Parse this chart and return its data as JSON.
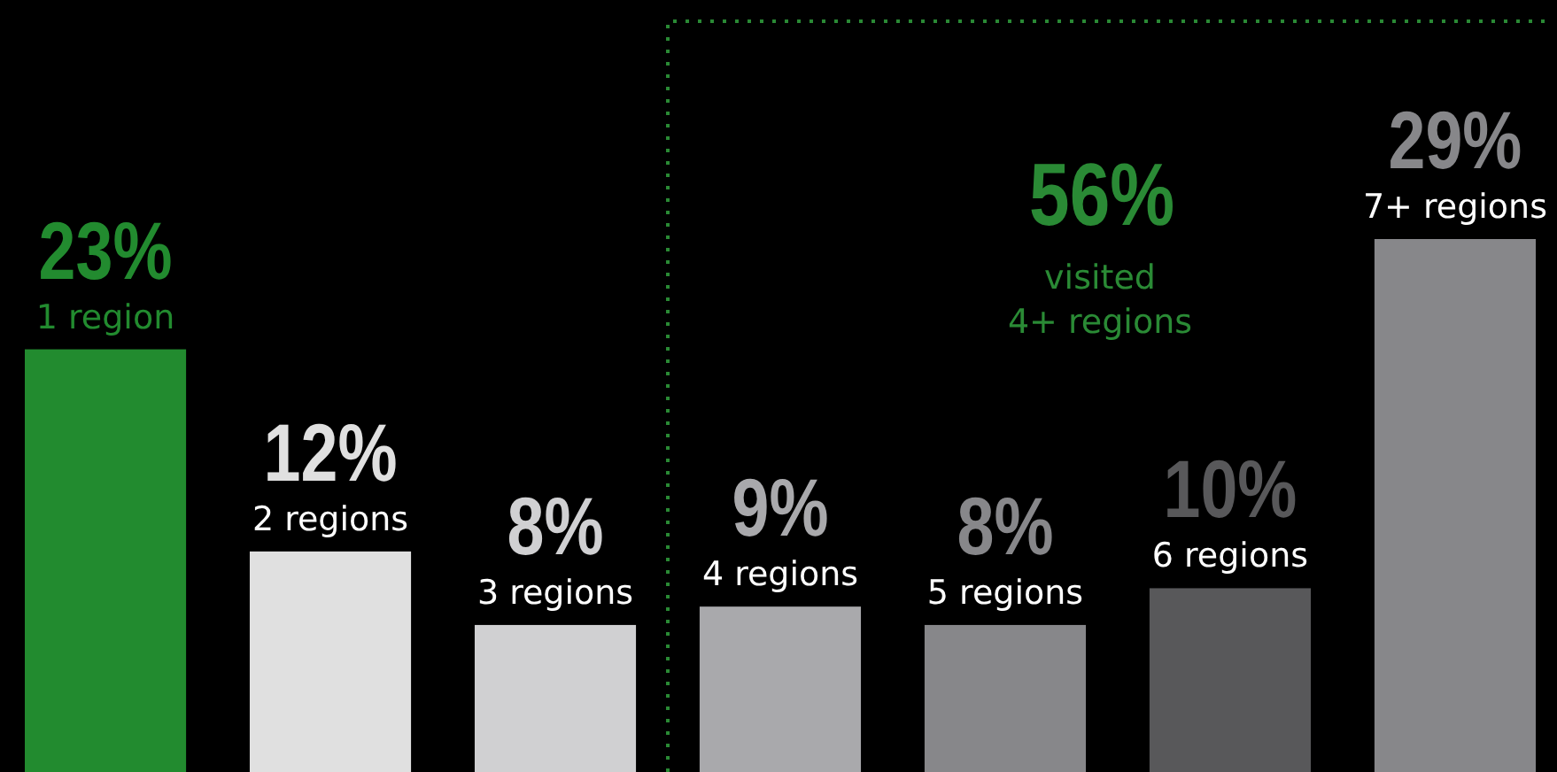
{
  "chart_data": {
    "type": "bar",
    "categories": [
      "1 region",
      "2 regions",
      "3 regions",
      "4 regions",
      "5 regions",
      "6 regions",
      "7+ regions"
    ],
    "values": [
      23,
      12,
      8,
      9,
      8,
      10,
      29
    ],
    "colors": [
      "#228b2f",
      "#e0e0e0",
      "#d0d0d2",
      "#a9a9ac",
      "#87878a",
      "#58585a",
      "#87878a"
    ],
    "value_labels": [
      "23%",
      "12%",
      "8%",
      "9%",
      "8%",
      "10%",
      "29%"
    ],
    "annotations": [
      "56%",
      "visited 4+ regions"
    ]
  }
}
